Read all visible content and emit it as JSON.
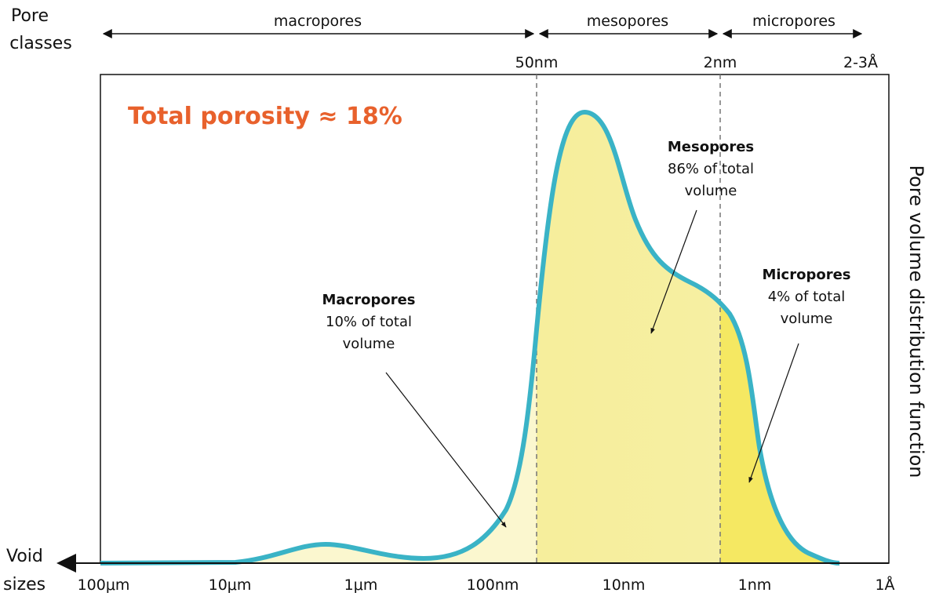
{
  "pore_classes": {
    "label_lines": [
      "Pore",
      "classes"
    ],
    "classes": [
      "macropores",
      "mesopores",
      "micropores"
    ],
    "boundaries": [
      "50nm",
      "2nm",
      "2-3Å"
    ]
  },
  "void_sizes": {
    "label_lines": [
      "Void",
      "sizes"
    ],
    "ticks": [
      "100μm",
      "10μm",
      "1μm",
      "100nm",
      "10nm",
      "1nm",
      "1Å"
    ]
  },
  "y_axis_label": "Pore volume distribution function",
  "annotation": "Total porosity ≈ 18%",
  "callouts": [
    {
      "title": "Macropores",
      "lines": [
        "10% of total",
        "volume"
      ]
    },
    {
      "title": "Mesopores",
      "lines": [
        "86% of total",
        "volume"
      ]
    },
    {
      "title": "Micropores",
      "lines": [
        "4% of total",
        "volume"
      ]
    }
  ]
}
